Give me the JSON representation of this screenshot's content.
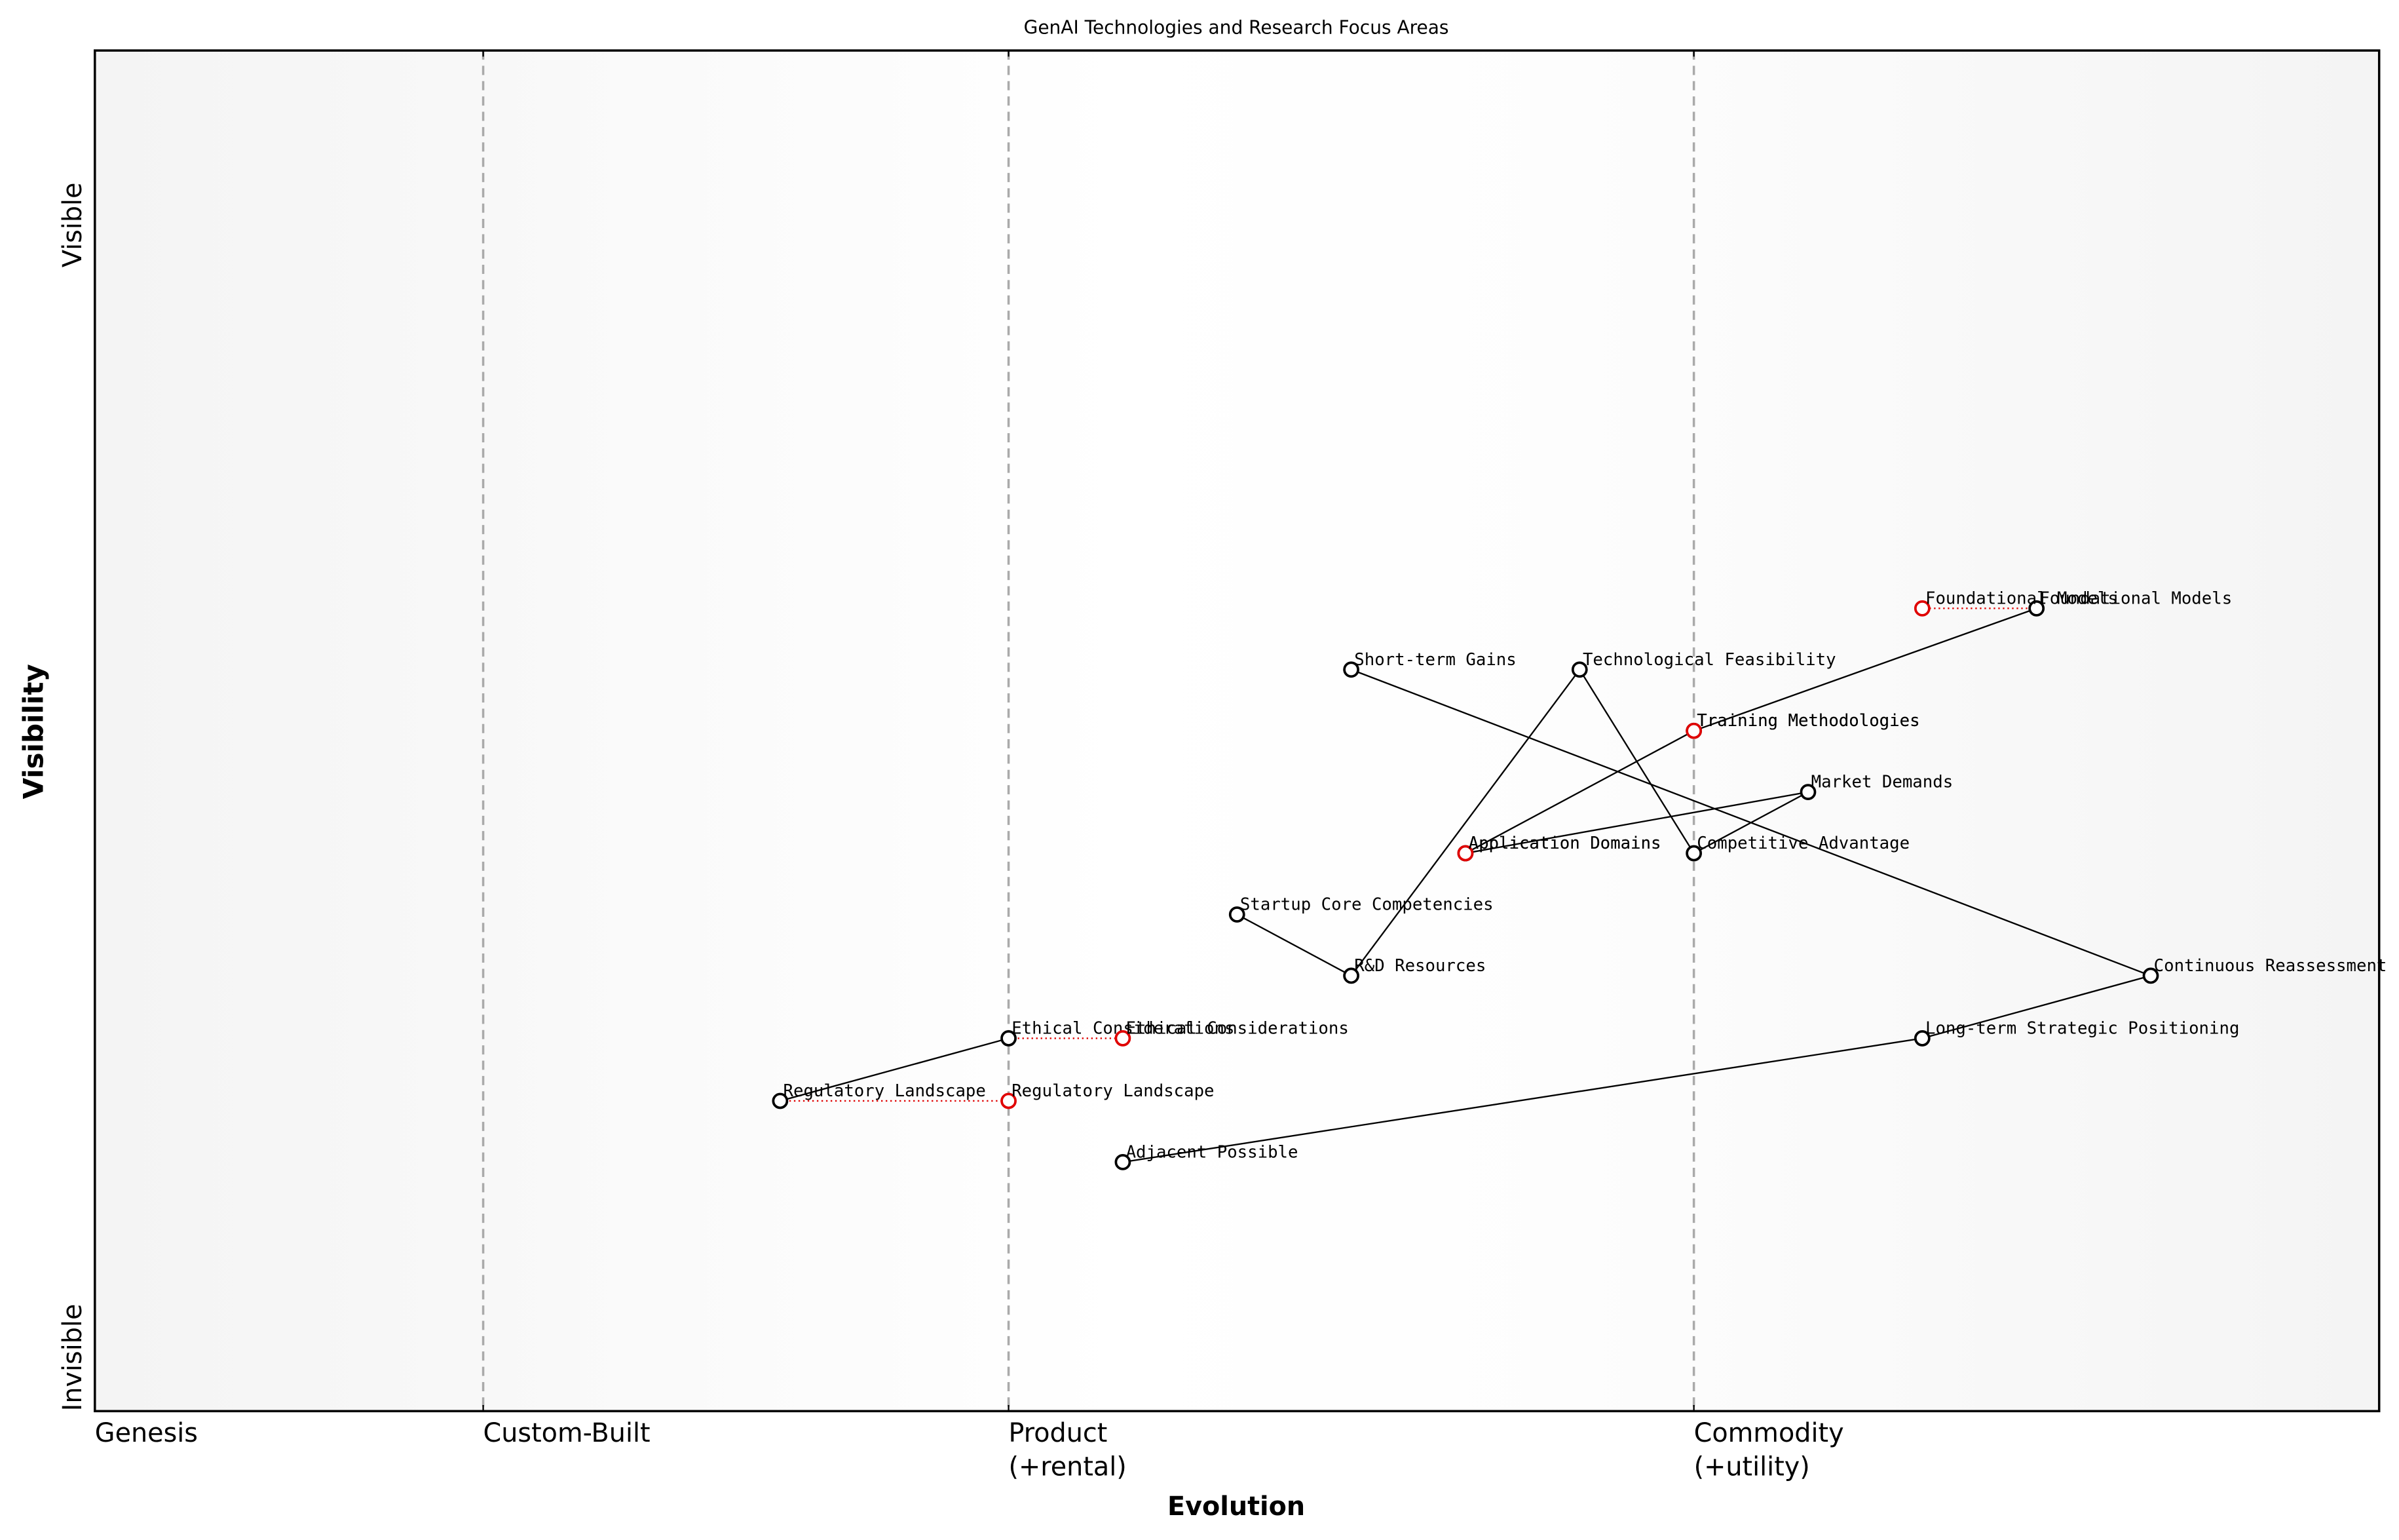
{
  "chart_data": {
    "type": "wardley",
    "title": "GenAI Technologies and Research Focus Areas",
    "xlabel": "Evolution",
    "ylabel": "Visibility",
    "ytop": "Visible",
    "ybottom": "Invisible",
    "xlim": [
      0,
      1
    ],
    "ylim": [
      0,
      1
    ],
    "stages": [
      {
        "value": 0,
        "label": "Genesis"
      },
      {
        "value": 0.17,
        "label": "Custom-Built"
      },
      {
        "value": 0.4,
        "label": "Product\n(+rental)"
      },
      {
        "value": 0.7,
        "label": "Commodity\n(+utility)"
      }
    ],
    "color": "#000000",
    "evolve_color": "#e00000",
    "components": [
      {
        "name": "Foundational Models",
        "x": 0.85,
        "y": 0.59,
        "evolve": 0.8
      },
      {
        "name": "Short-term Gains",
        "x": 0.55,
        "y": 0.545
      },
      {
        "name": "Technological Feasibility",
        "x": 0.65,
        "y": 0.545
      },
      {
        "name": "Training Methodologies",
        "x": 0.7,
        "y": 0.5,
        "evolve": 0.7
      },
      {
        "name": "Market Demands",
        "x": 0.75,
        "y": 0.455
      },
      {
        "name": "Application Domains",
        "x": 0.6,
        "y": 0.41,
        "evolve": 0.6
      },
      {
        "name": "Competitive Advantage",
        "x": 0.7,
        "y": 0.41
      },
      {
        "name": "Startup Core Competencies",
        "x": 0.5,
        "y": 0.365
      },
      {
        "name": "R&D Resources",
        "x": 0.55,
        "y": 0.32
      },
      {
        "name": "Continuous Reassessment",
        "x": 0.9,
        "y": 0.32
      },
      {
        "name": "Ethical Considerations",
        "x": 0.4,
        "y": 0.274,
        "evolve": 0.45
      },
      {
        "name": "Long-term Strategic Positioning",
        "x": 0.8,
        "y": 0.274
      },
      {
        "name": "Regulatory Landscape",
        "x": 0.3,
        "y": 0.228,
        "evolve": 0.4
      },
      {
        "name": "Adjacent Possible",
        "x": 0.45,
        "y": 0.183
      }
    ],
    "links": [
      [
        1,
        9
      ],
      [
        9,
        11
      ],
      [
        11,
        13
      ],
      [
        2,
        8
      ],
      [
        2,
        6
      ],
      [
        6,
        4
      ],
      [
        4,
        5
      ],
      [
        5,
        3
      ],
      [
        3,
        0
      ],
      [
        7,
        8
      ],
      [
        12,
        10
      ]
    ]
  }
}
